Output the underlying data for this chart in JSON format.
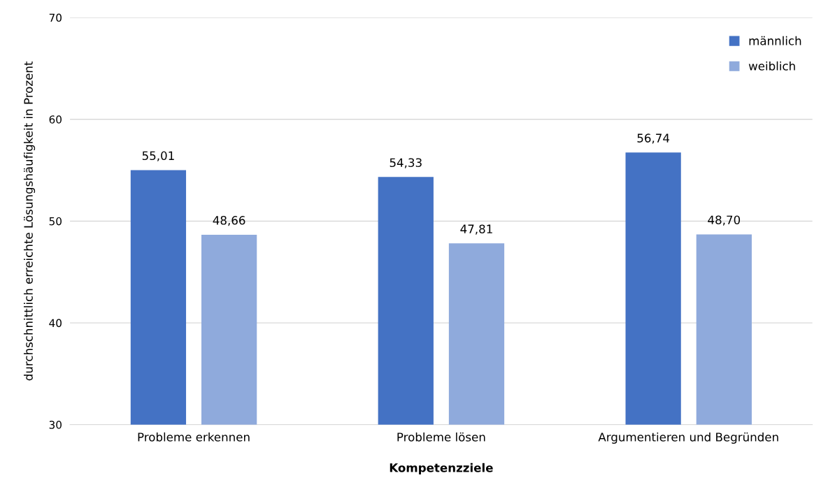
{
  "chart_data": {
    "type": "bar",
    "xlabel": "Kompetenzziele",
    "ylabel": "durchschnittlich erreichte Lösungshäufigkeit in Prozent",
    "categories": [
      "Probleme erkennen",
      "Probleme lösen",
      "Argumentieren und Begründen"
    ],
    "series": [
      {
        "name": "männlich",
        "color": "#4472c4",
        "values": [
          55.01,
          54.33,
          56.74
        ],
        "value_labels": [
          "55,01",
          "54,33",
          "56,74"
        ]
      },
      {
        "name": "weiblich",
        "color": "#8faadc",
        "values": [
          48.66,
          47.81,
          48.7
        ],
        "value_labels": [
          "48,66",
          "47,81",
          "48,70"
        ]
      }
    ],
    "ylim": [
      30,
      70
    ],
    "yticks": [
      30,
      40,
      50,
      60,
      70
    ],
    "grid": "y",
    "legend": "top right"
  }
}
